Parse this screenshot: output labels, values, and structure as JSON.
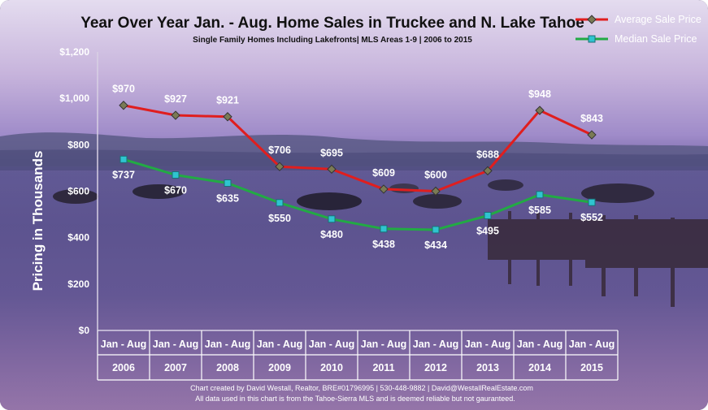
{
  "chart_data": {
    "type": "line",
    "title": "Year Over Year Jan. - Aug. Home Sales in Truckee and N. Lake Tahoe",
    "subtitle": "Single Family Homes Including Lakefronts| MLS Areas 1-9 | 2006 to 2015",
    "ylabel": "Pricing in Thousands",
    "xlabel": "",
    "ylim": [
      0,
      1200
    ],
    "y_ticks": [
      "$0",
      "$200",
      "$400",
      "$600",
      "$800",
      "$1,000",
      "$1,200"
    ],
    "y_tick_values": [
      0,
      200,
      400,
      600,
      800,
      1000,
      1200
    ],
    "category_top": [
      "Jan - Aug",
      "Jan - Aug",
      "Jan - Aug",
      "Jan - Aug",
      "Jan - Aug",
      "Jan - Aug",
      "Jan - Aug",
      "Jan - Aug",
      "Jan - Aug",
      "Jan - Aug"
    ],
    "categories": [
      "2006",
      "2007",
      "2008",
      "2009",
      "2010",
      "2011",
      "2012",
      "2013",
      "2014",
      "2015"
    ],
    "legend_position": "top-right",
    "grid": false,
    "series": [
      {
        "name": "Average Sale Price",
        "color": "#e01e1e",
        "marker": "diamond",
        "marker_color": "#7a7a55",
        "values": [
          970,
          927,
          921,
          706,
          695,
          609,
          600,
          688,
          948,
          843
        ],
        "labels": [
          "$970",
          "$927",
          "$921",
          "$706",
          "$695",
          "$609",
          "$600",
          "$688",
          "$948",
          "$843"
        ]
      },
      {
        "name": "Median Sale Price",
        "color": "#22aa44",
        "marker": "square",
        "marker_color": "#2fc4d0",
        "values": [
          737,
          670,
          635,
          550,
          480,
          438,
          434,
          495,
          585,
          552
        ],
        "labels": [
          "$737",
          "$670",
          "$635",
          "$550",
          "$480",
          "$438",
          "$434",
          "$495",
          "$585",
          "$552"
        ]
      }
    ]
  },
  "footer": {
    "line1": "Chart created by David Westall, Realtor, BRE#01796995 | 530-448-9882 | David@WestallRealEstate.com",
    "line2": "All data used in this chart is from the Tahoe-Sierra MLS and is deemed reliable but  not gauranteed."
  }
}
